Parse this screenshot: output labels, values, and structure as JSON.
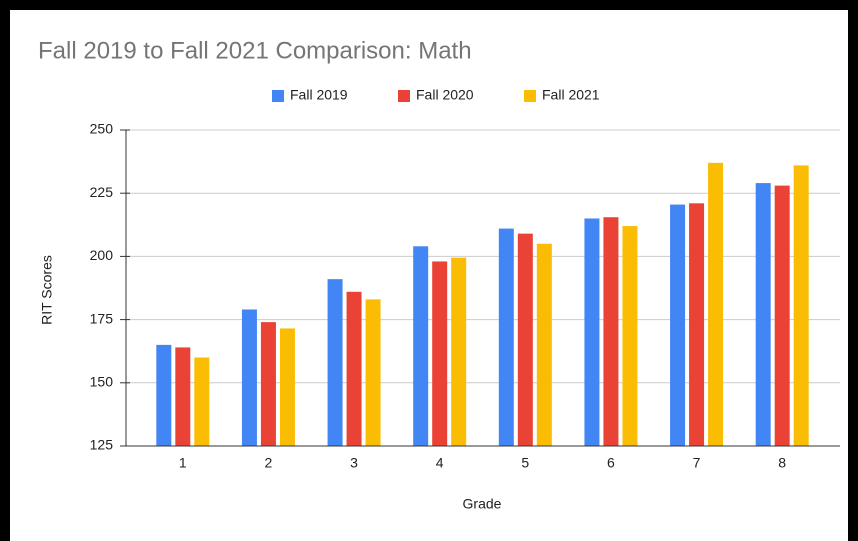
{
  "chart_data": {
    "type": "bar",
    "title": "Fall 2019 to Fall 2021 Comparison: Math",
    "x_label": "Grade",
    "y_label": "RIT Scores",
    "categories": [
      "1",
      "2",
      "3",
      "4",
      "5",
      "6",
      "7",
      "8"
    ],
    "series": [
      {
        "name": "Fall 2019",
        "color": "#4285f4",
        "values": [
          165,
          179,
          191,
          204,
          211,
          215,
          220.5,
          229
        ]
      },
      {
        "name": "Fall 2020",
        "color": "#ea4335",
        "values": [
          164,
          174,
          186,
          198,
          209,
          215.5,
          221,
          228
        ]
      },
      {
        "name": "Fall 2021",
        "color": "#fbbc04",
        "values": [
          160,
          171.5,
          183,
          199.5,
          205,
          212,
          237,
          236
        ]
      }
    ],
    "ylim": [
      125,
      250
    ],
    "yticks": [
      125,
      150,
      175,
      200,
      225,
      250
    ],
    "grid": true,
    "legend": "top"
  }
}
